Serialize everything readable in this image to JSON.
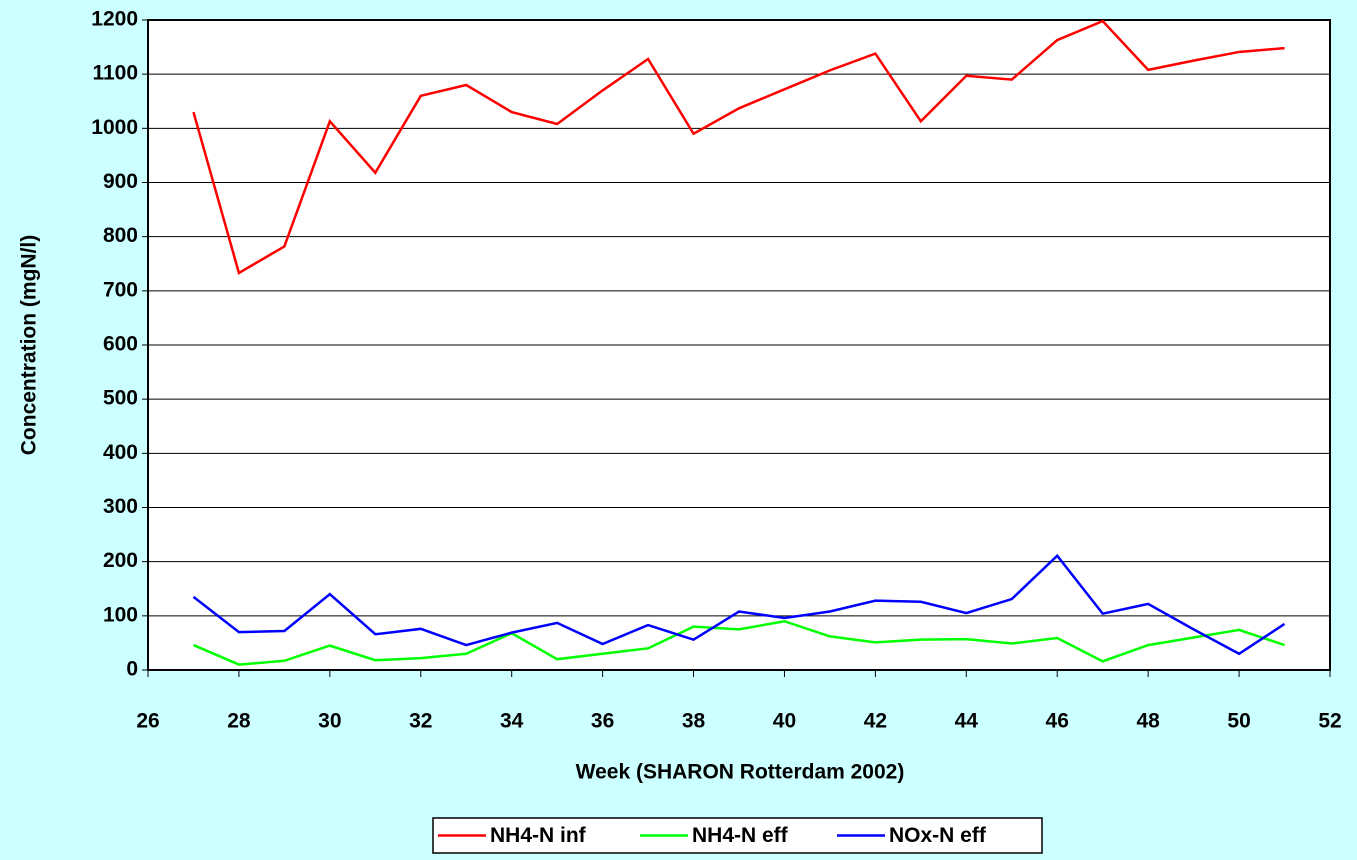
{
  "chart_data": {
    "type": "line",
    "xlabel": "Week (SHARON Rotterdam 2002)",
    "ylabel": "Concentration (mgN/l)",
    "x": [
      27,
      28,
      29,
      30,
      31,
      32,
      33,
      34,
      35,
      36,
      37,
      38,
      39,
      40,
      41,
      42,
      43,
      44,
      45,
      46,
      47,
      48,
      49,
      50,
      51
    ],
    "series": [
      {
        "name": "NH4-N inf",
        "color": "#ff0000",
        "values": [
          1030,
          733,
          782,
          1013,
          918,
          1060,
          1080,
          1030,
          1008,
          1070,
          1128,
          990,
          1037,
          1072,
          1107,
          1138,
          1013,
          1097,
          1090,
          1163,
          1198,
          1108,
          1125,
          1141,
          1148
        ]
      },
      {
        "name": "NH4-N eff",
        "color": "#00ff00",
        "values": [
          46,
          10,
          17,
          45,
          18,
          22,
          30,
          68,
          20,
          30,
          40,
          80,
          75,
          90,
          62,
          51,
          56,
          57,
          49,
          59,
          16,
          46,
          60,
          74,
          46
        ]
      },
      {
        "name": "NOx-N eff",
        "color": "#0000ff",
        "values": [
          135,
          70,
          72,
          140,
          66,
          76,
          46,
          69,
          87,
          48,
          83,
          56,
          108,
          96,
          108,
          128,
          126,
          105,
          131,
          211,
          104,
          122,
          75,
          30,
          85
        ]
      }
    ],
    "xlim": [
      26,
      52
    ],
    "xticks": [
      26,
      28,
      30,
      32,
      34,
      36,
      38,
      40,
      42,
      44,
      46,
      48,
      50,
      52
    ],
    "ylim": [
      0,
      1200
    ],
    "yticks": [
      0,
      100,
      200,
      300,
      400,
      500,
      600,
      700,
      800,
      900,
      1000,
      1100,
      1200
    ],
    "grid": true,
    "legend": "bottom"
  }
}
